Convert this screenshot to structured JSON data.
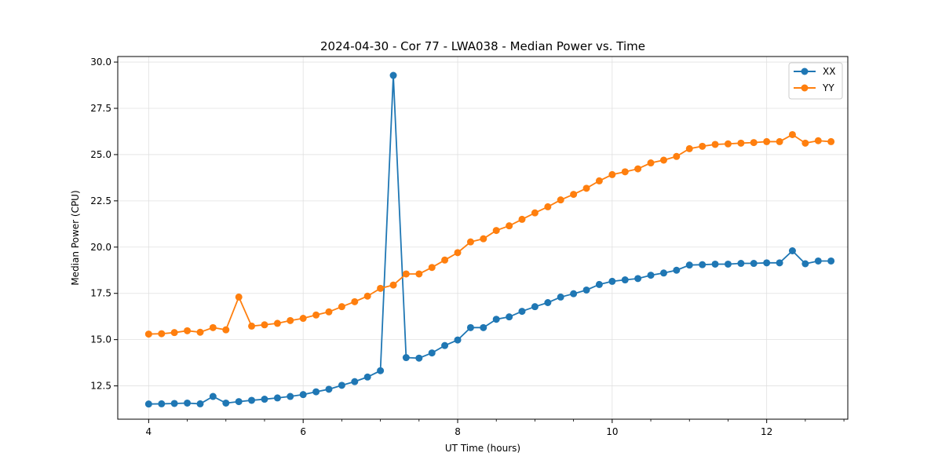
{
  "chart_data": {
    "type": "line",
    "title": "2024-04-30 - Cor 77 - LWA038 - Median Power vs. Time",
    "xlabel": "UT Time (hours)",
    "ylabel": "Median Power (CPU)",
    "xlim": [
      3.6,
      13.05
    ],
    "ylim": [
      10.7,
      30.3
    ],
    "xticks": [
      4,
      6,
      8,
      10,
      12
    ],
    "xtick_labels": [
      "4",
      "6",
      "8",
      "10",
      "12"
    ],
    "yticks": [
      12.5,
      15.0,
      17.5,
      20.0,
      22.5,
      25.0,
      27.5,
      30.0
    ],
    "ytick_labels": [
      "12.5",
      "15.0",
      "17.5",
      "20.0",
      "22.5",
      "25.0",
      "27.5",
      "30.0"
    ],
    "grid": true,
    "legend_position": "top-right",
    "x": [
      4.0,
      4.167,
      4.333,
      4.5,
      4.667,
      4.833,
      5.0,
      5.167,
      5.333,
      5.5,
      5.667,
      5.833,
      6.0,
      6.167,
      6.333,
      6.5,
      6.667,
      6.833,
      7.0,
      7.167,
      7.333,
      7.5,
      7.667,
      7.833,
      8.0,
      8.167,
      8.333,
      8.5,
      8.667,
      8.833,
      9.0,
      9.167,
      9.333,
      9.5,
      9.667,
      9.833,
      10.0,
      10.167,
      10.333,
      10.5,
      10.667,
      10.833,
      11.0,
      11.167,
      11.333,
      11.5,
      11.667,
      11.833,
      12.0,
      12.167,
      12.333,
      12.5,
      12.667,
      12.833
    ],
    "series": [
      {
        "name": "XX",
        "color": "#1f77b4",
        "values": [
          11.52,
          11.53,
          11.55,
          11.57,
          11.53,
          11.93,
          11.57,
          11.65,
          11.72,
          11.78,
          11.85,
          11.93,
          12.03,
          12.18,
          12.32,
          12.53,
          12.73,
          12.98,
          13.32,
          29.28,
          14.03,
          14.0,
          14.28,
          14.68,
          14.98,
          15.65,
          15.65,
          16.1,
          16.23,
          16.53,
          16.78,
          17.0,
          17.3,
          17.48,
          17.68,
          17.98,
          18.15,
          18.23,
          18.3,
          18.48,
          18.6,
          18.75,
          19.03,
          19.05,
          19.08,
          19.08,
          19.12,
          19.12,
          19.15,
          19.15,
          19.8,
          19.1,
          19.25,
          19.25
        ]
      },
      {
        "name": "YY",
        "color": "#ff7f0e",
        "values": [
          15.3,
          15.32,
          15.38,
          15.48,
          15.4,
          15.65,
          15.53,
          17.3,
          15.73,
          15.8,
          15.88,
          16.03,
          16.15,
          16.33,
          16.5,
          16.78,
          17.05,
          17.35,
          17.77,
          17.95,
          18.55,
          18.55,
          18.9,
          19.3,
          19.7,
          20.28,
          20.45,
          20.9,
          21.15,
          21.5,
          21.85,
          22.18,
          22.55,
          22.85,
          23.18,
          23.58,
          23.92,
          24.07,
          24.23,
          24.55,
          24.7,
          24.9,
          25.32,
          25.45,
          25.55,
          25.58,
          25.62,
          25.65,
          25.7,
          25.7,
          26.08,
          25.62,
          25.75,
          25.7
        ]
      }
    ]
  }
}
